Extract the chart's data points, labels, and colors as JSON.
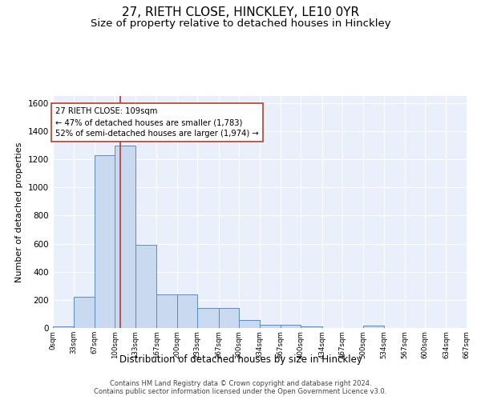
{
  "title1": "27, RIETH CLOSE, HINCKLEY, LE10 0YR",
  "title2": "Size of property relative to detached houses in Hinckley",
  "xlabel": "Distribution of detached houses by size in Hinckley",
  "ylabel": "Number of detached properties",
  "bin_edges": [
    0,
    33,
    67,
    100,
    133,
    167,
    200,
    233,
    267,
    300,
    334,
    367,
    400,
    434,
    467,
    500,
    534,
    567,
    600,
    634,
    667
  ],
  "bar_heights": [
    10,
    220,
    1230,
    1300,
    590,
    240,
    240,
    140,
    140,
    55,
    25,
    20,
    10,
    0,
    0,
    15,
    0,
    0,
    0,
    0
  ],
  "bar_color": "#c9d9f0",
  "bar_edge_color": "#5b8ac5",
  "property_size": 109,
  "vline_color": "#c0392b",
  "annotation_line1": "27 RIETH CLOSE: 109sqm",
  "annotation_line2": "← 47% of detached houses are smaller (1,783)",
  "annotation_line3": "52% of semi-detached houses are larger (1,974) →",
  "annotation_box_color": "#ffffff",
  "annotation_box_edge": "#c0392b",
  "ylim": [
    0,
    1650
  ],
  "yticks": [
    0,
    200,
    400,
    600,
    800,
    1000,
    1200,
    1400,
    1600
  ],
  "footer1": "Contains HM Land Registry data © Crown copyright and database right 2024.",
  "footer2": "Contains public sector information licensed under the Open Government Licence v3.0.",
  "bg_color": "#eaf0fb",
  "fig_bg_color": "#ffffff",
  "title1_fontsize": 11,
  "title2_fontsize": 9.5,
  "title1_bold": false
}
